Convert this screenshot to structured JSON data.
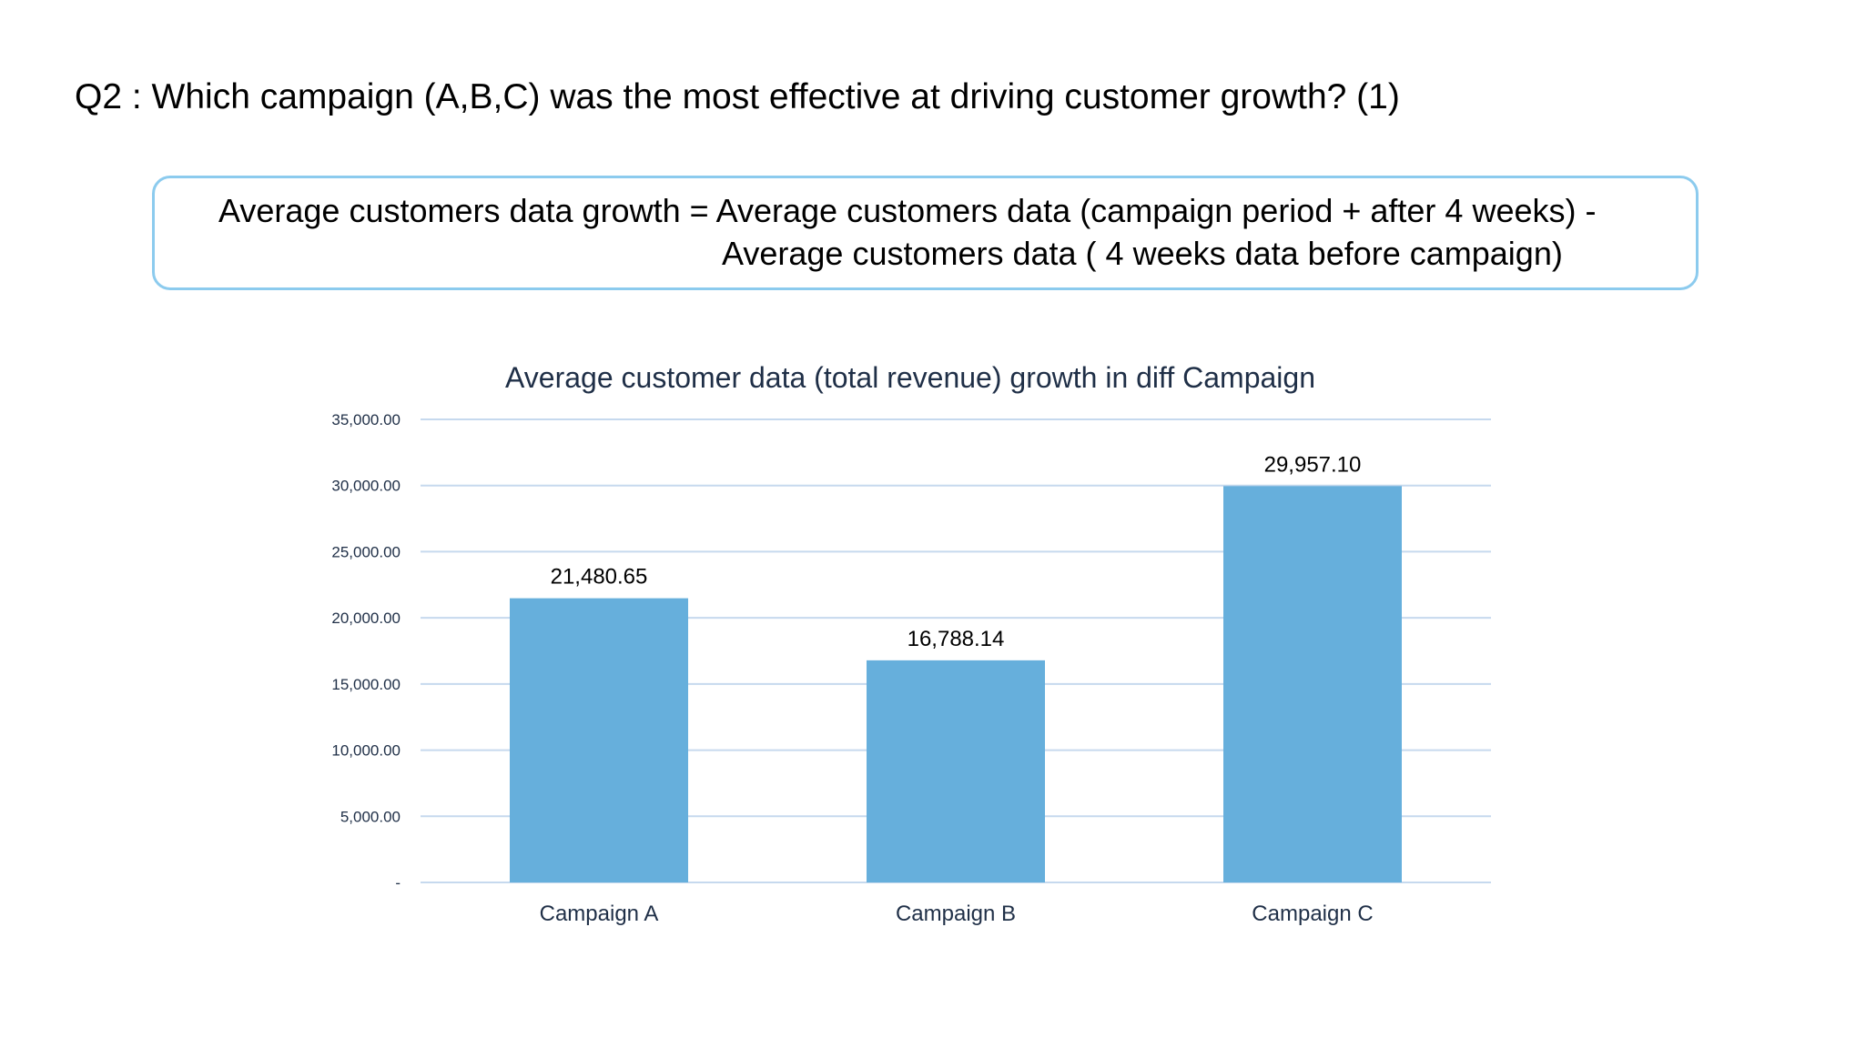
{
  "question": "Q2 : Which campaign (A,B,C) was the most effective at driving customer growth? (1)",
  "formula": {
    "line1": "Average customers data growth = Average customers data (campaign period + after 4 weeks) -",
    "line2": "Average customers data ( 4 weeks data before campaign)"
  },
  "colors": {
    "bar": "#66afdc",
    "gridline": "#c6d9ee",
    "box_border": "#8ccbee",
    "title_text": "#1f2f47",
    "axis_text": "#1f2f47"
  },
  "chart_data": {
    "type": "bar",
    "title": "Average customer data (total revenue)  growth in diff Campaign",
    "xlabel": "",
    "ylabel": "",
    "categories": [
      "Campaign A",
      "Campaign B",
      "Campaign C"
    ],
    "values": [
      21480.65,
      16788.14,
      29957.1
    ],
    "data_labels": [
      "21,480.65",
      "16,788.14",
      "29,957.10"
    ],
    "ylim": [
      0,
      35000
    ],
    "y_ticks": [
      0,
      5000,
      10000,
      15000,
      20000,
      25000,
      30000,
      35000
    ],
    "y_tick_labels": [
      "-",
      "5,000.00",
      "10,000.00",
      "15,000.00",
      "20,000.00",
      "25,000.00",
      "30,000.00",
      "35,000.00"
    ],
    "grid": true,
    "legend": "none"
  }
}
